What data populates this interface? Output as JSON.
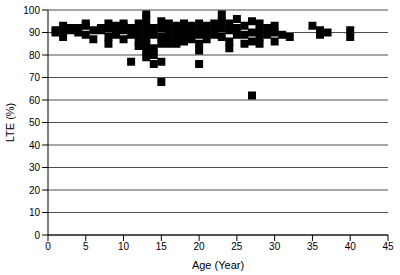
{
  "chart_data": {
    "type": "scatter",
    "x_label": "Age (Year)",
    "y_label": "LTE (%)",
    "x": [
      1,
      1,
      2,
      2,
      2,
      3,
      3,
      4,
      4,
      5,
      5,
      5,
      6,
      6,
      7,
      7,
      8,
      8,
      8,
      8,
      9,
      9,
      9,
      10,
      10,
      10,
      10,
      11,
      11,
      11,
      12,
      12,
      12,
      12,
      12,
      13,
      13,
      13,
      13,
      13,
      13,
      13,
      13,
      14,
      14,
      14,
      14,
      14,
      15,
      15,
      15,
      15,
      15,
      15,
      16,
      16,
      16,
      16,
      17,
      17,
      17,
      17,
      18,
      18,
      18,
      18,
      19,
      19,
      19,
      20,
      20,
      20,
      20,
      20,
      20,
      21,
      21,
      21,
      22,
      22,
      22,
      23,
      23,
      23,
      23,
      24,
      24,
      24,
      24,
      25,
      25,
      25,
      26,
      26,
      26,
      27,
      27,
      27,
      27,
      28,
      28,
      28,
      28,
      29,
      29,
      30,
      30,
      30,
      31,
      32,
      35,
      36,
      36,
      37,
      40,
      40
    ],
    "values": [
      91,
      90,
      93,
      91,
      88,
      92,
      91,
      92,
      90,
      93,
      94,
      89,
      91,
      87,
      92,
      91,
      94,
      92,
      88,
      85,
      93,
      91,
      89,
      93,
      91,
      87,
      94,
      92,
      89,
      77,
      94,
      91,
      89,
      86,
      84,
      98,
      96,
      93,
      90,
      87,
      85,
      79,
      82,
      92,
      89,
      83,
      80,
      76,
      95,
      92,
      88,
      85,
      77,
      68,
      94,
      91,
      88,
      85,
      93,
      90,
      87,
      85,
      94,
      91,
      88,
      86,
      93,
      90,
      87,
      94,
      91,
      89,
      85,
      82,
      76,
      93,
      90,
      87,
      94,
      92,
      89,
      98,
      95,
      92,
      88,
      94,
      91,
      86,
      83,
      96,
      92,
      89,
      93,
      89,
      85,
      95,
      90,
      86,
      62,
      94,
      91,
      88,
      85,
      92,
      89,
      93,
      90,
      86,
      89,
      88,
      93,
      91,
      89,
      90,
      91,
      88
    ],
    "color": "#000000",
    "marker": "square",
    "xlim": [
      0,
      45
    ],
    "xticks": [
      0,
      5,
      10,
      15,
      20,
      25,
      30,
      35,
      40,
      45
    ],
    "ylim": [
      0,
      100
    ],
    "yticks": [
      0,
      10,
      20,
      30,
      40,
      50,
      60,
      70,
      80,
      90,
      100
    ],
    "grid": true
  }
}
